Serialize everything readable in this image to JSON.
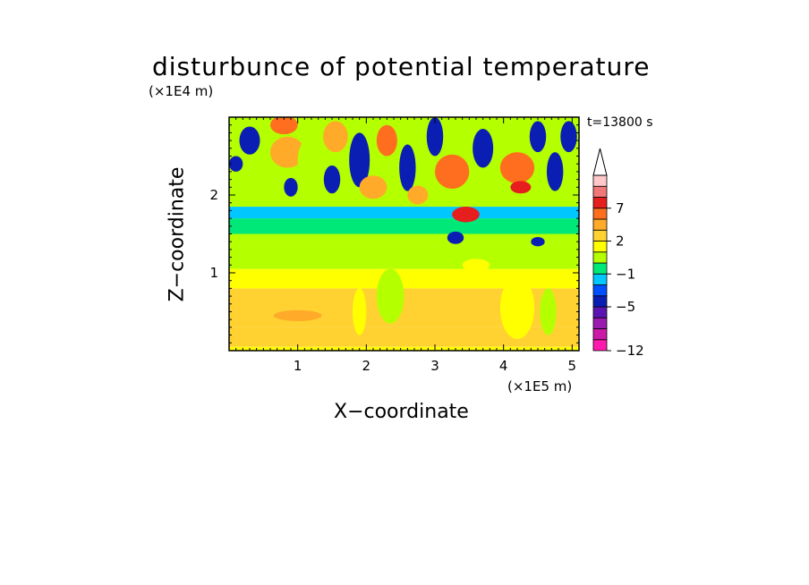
{
  "chart_data": {
    "type": "heatmap",
    "title": "disturbunce of potential temperature",
    "time_label": "t=13800 s",
    "xlabel": "X−coordinate",
    "ylabel": "Z−coordinate",
    "x_unit": "(×1E5 m)",
    "z_unit": "(×1E4 m)",
    "xlim": [
      0,
      5.1
    ],
    "ylim": [
      0,
      3.0
    ],
    "x_ticks": [
      "1",
      "2",
      "3",
      "4",
      "5"
    ],
    "x_tick_values": [
      1,
      2,
      3,
      4,
      5
    ],
    "y_ticks": [
      "1",
      "2"
    ],
    "y_tick_values": [
      1,
      2
    ],
    "colorbar": {
      "ticks": [
        {
          "label": "7",
          "value": 7
        },
        {
          "label": "2",
          "value": 2
        },
        {
          "label": "−1",
          "value": -1
        },
        {
          "label": "−5",
          "value": -5
        },
        {
          "label": "−12",
          "value": -12
        }
      ],
      "levels": [
        {
          "value": -12,
          "color": "#ff1aae"
        },
        {
          "value": -10,
          "color": "#cc1aa8"
        },
        {
          "value": -8,
          "color": "#9a1ab0"
        },
        {
          "value": -6,
          "color": "#5a14b4"
        },
        {
          "value": -5,
          "color": "#0a1eb4"
        },
        {
          "value": -4,
          "color": "#0050ff"
        },
        {
          "value": -2,
          "color": "#00c8ff"
        },
        {
          "value": -1,
          "color": "#00e878"
        },
        {
          "value": 0,
          "color": "#b4ff00"
        },
        {
          "value": 1,
          "color": "#ffff00"
        },
        {
          "value": 2,
          "color": "#ffd232"
        },
        {
          "value": 3,
          "color": "#ffaa28"
        },
        {
          "value": 5,
          "color": "#ff6e1e"
        },
        {
          "value": 7,
          "color": "#e61e1e"
        },
        {
          "value": 8,
          "color": "#f07878"
        },
        {
          "value": 9,
          "color": "#ffc8c8"
        }
      ],
      "overflow_color": "#ffffff"
    },
    "bands": [
      {
        "z_range": [
          0,
          0.05
        ],
        "value": 1
      },
      {
        "z_range": [
          0.05,
          0.3
        ],
        "value": 2
      },
      {
        "z_range": [
          0.3,
          0.8
        ],
        "value": 2.5
      },
      {
        "z_range": [
          0.8,
          1.05
        ],
        "value": 1
      },
      {
        "z_range": [
          1.05,
          1.35
        ],
        "value": 0.5
      },
      {
        "z_range": [
          1.35,
          1.5
        ],
        "value": 0
      },
      {
        "z_range": [
          1.5,
          1.7
        ],
        "value": -1
      },
      {
        "z_range": [
          1.7,
          1.85
        ],
        "value": -2
      },
      {
        "z_range": [
          1.85,
          3.0
        ],
        "value": 0
      }
    ],
    "blobs": [
      {
        "x": 0.1,
        "z": 2.4,
        "rx": 0.1,
        "rz": 0.1,
        "value": -5
      },
      {
        "x": 0.3,
        "z": 2.7,
        "rx": 0.15,
        "rz": 0.18,
        "value": -5
      },
      {
        "x": 0.85,
        "z": 2.55,
        "rx": 0.25,
        "rz": 0.2,
        "value": 3
      },
      {
        "x": 0.8,
        "z": 2.9,
        "rx": 0.2,
        "rz": 0.12,
        "value": 5
      },
      {
        "x": 0.9,
        "z": 2.1,
        "rx": 0.1,
        "rz": 0.12,
        "value": -5
      },
      {
        "x": 1.2,
        "z": 2.45,
        "rx": 0.2,
        "rz": 0.3,
        "value": 0
      },
      {
        "x": 1.5,
        "z": 2.2,
        "rx": 0.12,
        "rz": 0.18,
        "value": -5
      },
      {
        "x": 1.55,
        "z": 2.75,
        "rx": 0.18,
        "rz": 0.2,
        "value": 3
      },
      {
        "x": 1.9,
        "z": 2.45,
        "rx": 0.15,
        "rz": 0.35,
        "value": -5
      },
      {
        "x": 2.1,
        "z": 2.1,
        "rx": 0.2,
        "rz": 0.15,
        "value": 3
      },
      {
        "x": 2.3,
        "z": 2.7,
        "rx": 0.15,
        "rz": 0.2,
        "value": 5
      },
      {
        "x": 2.6,
        "z": 2.35,
        "rx": 0.12,
        "rz": 0.3,
        "value": -5
      },
      {
        "x": 2.75,
        "z": 2.0,
        "rx": 0.15,
        "rz": 0.12,
        "value": 3
      },
      {
        "x": 3.0,
        "z": 2.75,
        "rx": 0.12,
        "rz": 0.25,
        "value": -5
      },
      {
        "x": 3.25,
        "z": 2.3,
        "rx": 0.25,
        "rz": 0.22,
        "value": 5
      },
      {
        "x": 3.45,
        "z": 1.75,
        "rx": 0.2,
        "rz": 0.1,
        "value": 7
      },
      {
        "x": 3.7,
        "z": 2.6,
        "rx": 0.15,
        "rz": 0.25,
        "value": -5
      },
      {
        "x": 4.2,
        "z": 2.35,
        "rx": 0.25,
        "rz": 0.2,
        "value": 5
      },
      {
        "x": 4.25,
        "z": 2.1,
        "rx": 0.15,
        "rz": 0.08,
        "value": 7
      },
      {
        "x": 4.5,
        "z": 2.75,
        "rx": 0.12,
        "rz": 0.2,
        "value": -5
      },
      {
        "x": 4.75,
        "z": 2.3,
        "rx": 0.12,
        "rz": 0.25,
        "value": -5
      },
      {
        "x": 4.95,
        "z": 2.75,
        "rx": 0.12,
        "rz": 0.2,
        "value": -5
      },
      {
        "x": 3.3,
        "z": 1.45,
        "rx": 0.12,
        "rz": 0.08,
        "value": -5
      },
      {
        "x": 4.5,
        "z": 1.4,
        "rx": 0.1,
        "rz": 0.06,
        "value": -5
      },
      {
        "x": 2.35,
        "z": 0.7,
        "rx": 0.2,
        "rz": 0.35,
        "value": 0.5
      },
      {
        "x": 1.9,
        "z": 0.5,
        "rx": 0.1,
        "rz": 0.3,
        "value": 1
      },
      {
        "x": 4.2,
        "z": 0.55,
        "rx": 0.25,
        "rz": 0.4,
        "value": 1
      },
      {
        "x": 4.65,
        "z": 0.5,
        "rx": 0.12,
        "rz": 0.3,
        "value": 0.5
      },
      {
        "x": 3.6,
        "z": 1.1,
        "rx": 0.2,
        "rz": 0.08,
        "value": 1
      },
      {
        "x": 1.0,
        "z": 0.45,
        "rx": 0.35,
        "rz": 0.07,
        "value": 3
      }
    ]
  }
}
